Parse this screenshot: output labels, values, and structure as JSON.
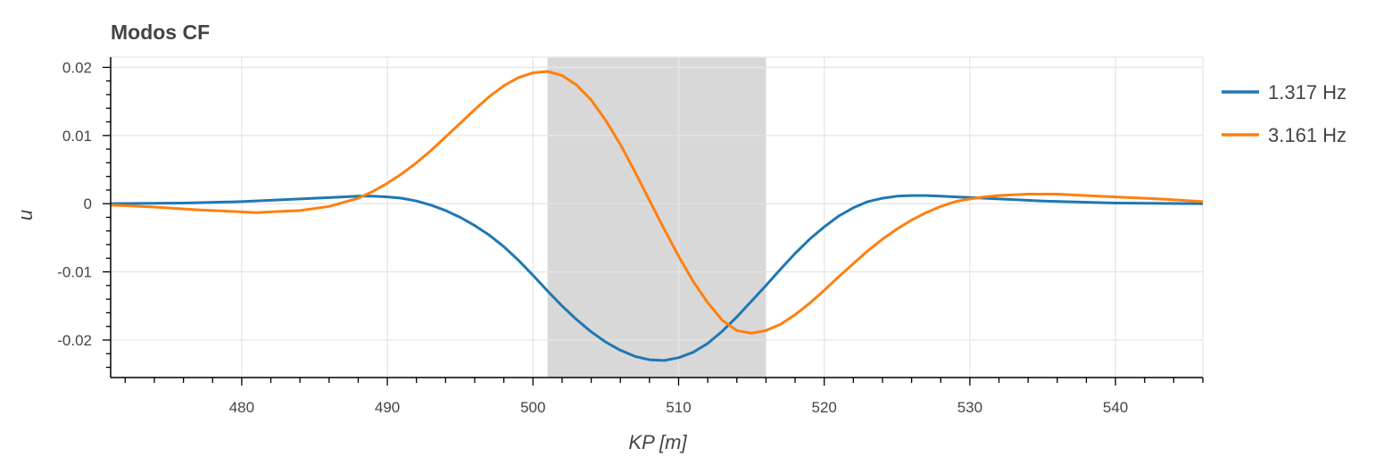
{
  "chart_data": {
    "type": "line",
    "title": "Modos CF",
    "xlabel": "KP [m]",
    "ylabel": "u",
    "xlim": [
      471,
      546
    ],
    "ylim": [
      -0.0255,
      0.0215
    ],
    "x_ticks": [
      480,
      490,
      500,
      510,
      520,
      530,
      540
    ],
    "x_tick_labels": [
      "480",
      "490",
      "500",
      "510",
      "520",
      "530",
      "540"
    ],
    "y_ticks": [
      0.02,
      0.01,
      0,
      -0.01,
      -0.02
    ],
    "y_tick_labels": [
      "0.02",
      "0.01",
      "0",
      "-0.01",
      "-0.02"
    ],
    "grid": true,
    "legend_position": "right",
    "shaded_region": {
      "x_start": 501,
      "x_end": 516,
      "color": "#d8d8d8"
    },
    "series": [
      {
        "name": "1.317 Hz",
        "color": "#1f77b4",
        "x": [
          471,
          476,
          480,
          484,
          487,
          488,
          489,
          490,
          491,
          492,
          493,
          494,
          495,
          496,
          497,
          498,
          499,
          500,
          501,
          502,
          503,
          504,
          505,
          506,
          507,
          508,
          509,
          510,
          511,
          512,
          513,
          514,
          515,
          516,
          517,
          518,
          519,
          520,
          521,
          522,
          523,
          524,
          525,
          526,
          527,
          528,
          529,
          530,
          532,
          535,
          540,
          546
        ],
        "y": [
          0.0,
          0.0001,
          0.0003,
          0.0007,
          0.001,
          0.0011,
          0.0011,
          0.001,
          0.0008,
          0.0004,
          -0.0002,
          -0.001,
          -0.002,
          -0.0032,
          -0.0046,
          -0.0063,
          -0.0083,
          -0.0105,
          -0.0128,
          -0.015,
          -0.017,
          -0.0188,
          -0.0203,
          -0.0215,
          -0.0224,
          -0.0229,
          -0.023,
          -0.0226,
          -0.0218,
          -0.0205,
          -0.0187,
          -0.0166,
          -0.0143,
          -0.012,
          -0.0096,
          -0.0073,
          -0.0052,
          -0.0034,
          -0.0018,
          -0.0006,
          0.0003,
          0.0008,
          0.0011,
          0.0012,
          0.0012,
          0.0011,
          0.001,
          0.0009,
          0.0007,
          0.0004,
          0.0001,
          0.0
        ]
      },
      {
        "name": "3.161 Hz",
        "color": "#ff7f0e",
        "x": [
          471,
          474,
          477,
          480,
          481,
          482,
          484,
          486,
          488,
          489,
          490,
          491,
          492,
          493,
          494,
          495,
          496,
          497,
          498,
          499,
          500,
          501,
          502,
          503,
          504,
          505,
          506,
          507,
          508,
          509,
          510,
          511,
          512,
          513,
          514,
          515,
          516,
          517,
          518,
          519,
          520,
          521,
          522,
          523,
          524,
          525,
          526,
          527,
          528,
          529,
          530,
          531,
          532,
          533,
          534,
          535,
          536,
          538,
          540,
          543,
          546
        ],
        "y": [
          -0.0002,
          -0.0005,
          -0.0009,
          -0.0012,
          -0.0013,
          -0.0012,
          -0.001,
          -0.0004,
          0.0008,
          0.0018,
          0.003,
          0.0044,
          0.006,
          0.0078,
          0.0098,
          0.0118,
          0.0138,
          0.0157,
          0.0173,
          0.0185,
          0.0192,
          0.0194,
          0.0188,
          0.0174,
          0.0152,
          0.0122,
          0.0087,
          0.0047,
          0.0005,
          -0.0037,
          -0.0077,
          -0.0114,
          -0.0145,
          -0.0171,
          -0.0186,
          -0.019,
          -0.0186,
          -0.0177,
          -0.0163,
          -0.0146,
          -0.0127,
          -0.0107,
          -0.0088,
          -0.0069,
          -0.0052,
          -0.0037,
          -0.0024,
          -0.0013,
          -0.0004,
          0.0003,
          0.0007,
          0.001,
          0.0012,
          0.0013,
          0.0014,
          0.0014,
          0.0014,
          0.0012,
          0.001,
          0.0007,
          0.0003
        ]
      }
    ]
  }
}
